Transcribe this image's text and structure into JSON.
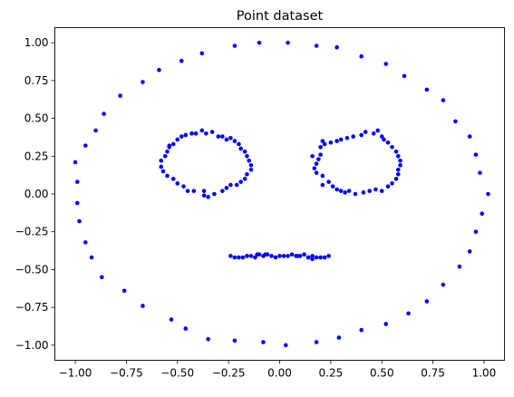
{
  "chart_data": {
    "type": "scatter",
    "title": "Point dataset",
    "xlabel": "",
    "ylabel": "",
    "xlim": [
      -1.1,
      1.1
    ],
    "ylim": [
      -1.1,
      1.1
    ],
    "xticks": [
      -1.0,
      -0.75,
      -0.5,
      -0.25,
      0.0,
      0.25,
      0.5,
      0.75,
      1.0
    ],
    "xtick_labels": [
      "−1.00",
      "−0.75",
      "−0.50",
      "−0.25",
      "0.00",
      "0.25",
      "0.50",
      "0.75",
      "1.00"
    ],
    "yticks": [
      1.0,
      0.75,
      0.5,
      0.25,
      0.0,
      -0.25,
      -0.5,
      -0.75,
      -1.0
    ],
    "ytick_labels": [
      "1.00",
      "0.75",
      "0.50",
      "0.25",
      "0.00",
      "−0.25",
      "−0.50",
      "−0.75",
      "−1.00"
    ],
    "grid": false,
    "legend": false,
    "marker_color": "#0000ff",
    "series": [
      {
        "points": [
          [
            -1.0,
            0.21
          ],
          [
            -0.99,
            0.08
          ],
          [
            -0.99,
            -0.06
          ],
          [
            -0.98,
            -0.18
          ],
          [
            -0.95,
            -0.32
          ],
          [
            -0.92,
            -0.42
          ],
          [
            -0.87,
            -0.55
          ],
          [
            -0.76,
            -0.64
          ],
          [
            -0.67,
            -0.74
          ],
          [
            -0.53,
            -0.83
          ],
          [
            -0.46,
            -0.89
          ],
          [
            -0.35,
            -0.96
          ],
          [
            -0.22,
            -0.97
          ],
          [
            -0.08,
            -0.98
          ],
          [
            0.03,
            -1.0
          ],
          [
            0.18,
            -0.98
          ],
          [
            0.29,
            -0.95
          ],
          [
            0.4,
            -0.9
          ],
          [
            0.52,
            -0.86
          ],
          [
            0.63,
            -0.79
          ],
          [
            0.72,
            -0.71
          ],
          [
            0.8,
            -0.6
          ],
          [
            0.88,
            -0.48
          ],
          [
            0.93,
            -0.38
          ],
          [
            0.96,
            -0.25
          ],
          [
            0.99,
            -0.13
          ],
          [
            1.02,
            0.0
          ],
          [
            0.98,
            0.14
          ],
          [
            0.96,
            0.26
          ],
          [
            0.93,
            0.38
          ],
          [
            0.86,
            0.48
          ],
          [
            0.8,
            0.62
          ],
          [
            0.72,
            0.69
          ],
          [
            0.61,
            0.78
          ],
          [
            0.52,
            0.86
          ],
          [
            0.4,
            0.91
          ],
          [
            0.28,
            0.97
          ],
          [
            0.18,
            0.98
          ],
          [
            0.04,
            1.0
          ],
          [
            -0.1,
            1.0
          ],
          [
            -0.22,
            0.98
          ],
          [
            -0.38,
            0.93
          ],
          [
            -0.48,
            0.88
          ],
          [
            -0.59,
            0.82
          ],
          [
            -0.67,
            0.74
          ],
          [
            -0.78,
            0.65
          ],
          [
            -0.86,
            0.53
          ],
          [
            -0.9,
            0.42
          ],
          [
            -0.95,
            0.32
          ],
          [
            -0.38,
            0.42
          ],
          [
            -0.36,
            0.4
          ],
          [
            -0.33,
            0.41
          ],
          [
            -0.3,
            0.38
          ],
          [
            -0.28,
            0.38
          ],
          [
            -0.26,
            0.36
          ],
          [
            -0.24,
            0.37
          ],
          [
            -0.22,
            0.35
          ],
          [
            -0.2,
            0.33
          ],
          [
            -0.19,
            0.3
          ],
          [
            -0.17,
            0.28
          ],
          [
            -0.16,
            0.25
          ],
          [
            -0.15,
            0.22
          ],
          [
            -0.14,
            0.19
          ],
          [
            -0.14,
            0.16
          ],
          [
            -0.16,
            0.13
          ],
          [
            -0.17,
            0.1
          ],
          [
            -0.19,
            0.08
          ],
          [
            -0.21,
            0.06
          ],
          [
            -0.24,
            0.06
          ],
          [
            -0.26,
            0.04
          ],
          [
            -0.28,
            0.02
          ],
          [
            -0.32,
            0.0
          ],
          [
            -0.35,
            -0.02
          ],
          [
            -0.37,
            0.02
          ],
          [
            -0.42,
            0.02
          ],
          [
            -0.45,
            0.02
          ],
          [
            -0.47,
            0.05
          ],
          [
            -0.5,
            0.07
          ],
          [
            -0.52,
            0.1
          ],
          [
            -0.55,
            0.12
          ],
          [
            -0.57,
            0.15
          ],
          [
            -0.58,
            0.18
          ],
          [
            -0.58,
            0.22
          ],
          [
            -0.56,
            0.25
          ],
          [
            -0.55,
            0.28
          ],
          [
            -0.54,
            0.31
          ],
          [
            -0.52,
            0.33
          ],
          [
            -0.5,
            0.36
          ],
          [
            -0.48,
            0.38
          ],
          [
            -0.46,
            0.39
          ],
          [
            -0.43,
            0.4
          ],
          [
            -0.37,
            -0.01
          ],
          [
            -0.54,
            0.32
          ],
          [
            -0.41,
            0.4
          ],
          [
            0.48,
            0.42
          ],
          [
            0.46,
            0.4
          ],
          [
            0.42,
            0.41
          ],
          [
            0.4,
            0.39
          ],
          [
            0.36,
            0.38
          ],
          [
            0.33,
            0.37
          ],
          [
            0.3,
            0.36
          ],
          [
            0.28,
            0.35
          ],
          [
            0.25,
            0.34
          ],
          [
            0.22,
            0.33
          ],
          [
            0.2,
            0.31
          ],
          [
            0.2,
            0.26
          ],
          [
            0.19,
            0.23
          ],
          [
            0.18,
            0.2
          ],
          [
            0.17,
            0.17
          ],
          [
            0.18,
            0.14
          ],
          [
            0.21,
            0.12
          ],
          [
            0.21,
            0.06
          ],
          [
            0.24,
            0.08
          ],
          [
            0.26,
            0.05
          ],
          [
            0.28,
            0.03
          ],
          [
            0.3,
            0.02
          ],
          [
            0.34,
            0.02
          ],
          [
            0.37,
            0.0
          ],
          [
            0.41,
            0.01
          ],
          [
            0.44,
            0.02
          ],
          [
            0.47,
            0.03
          ],
          [
            0.5,
            0.02
          ],
          [
            0.53,
            0.05
          ],
          [
            0.55,
            0.07
          ],
          [
            0.57,
            0.1
          ],
          [
            0.58,
            0.13
          ],
          [
            0.58,
            0.16
          ],
          [
            0.59,
            0.19
          ],
          [
            0.59,
            0.22
          ],
          [
            0.58,
            0.25
          ],
          [
            0.57,
            0.28
          ],
          [
            0.55,
            0.31
          ],
          [
            0.53,
            0.34
          ],
          [
            0.51,
            0.36
          ],
          [
            0.5,
            0.38
          ],
          [
            0.16,
            0.25
          ],
          [
            0.21,
            0.35
          ],
          [
            0.32,
            0.01
          ],
          [
            -0.24,
            -0.41
          ],
          [
            -0.22,
            -0.42
          ],
          [
            -0.2,
            -0.42
          ],
          [
            -0.18,
            -0.42
          ],
          [
            -0.16,
            -0.41
          ],
          [
            -0.14,
            -0.41
          ],
          [
            -0.12,
            -0.42
          ],
          [
            -0.1,
            -0.4
          ],
          [
            -0.08,
            -0.41
          ],
          [
            -0.06,
            -0.4
          ],
          [
            -0.04,
            -0.41
          ],
          [
            -0.02,
            -0.42
          ],
          [
            0.0,
            -0.41
          ],
          [
            0.02,
            -0.41
          ],
          [
            0.04,
            -0.41
          ],
          [
            0.06,
            -0.4
          ],
          [
            0.08,
            -0.41
          ],
          [
            0.1,
            -0.41
          ],
          [
            0.12,
            -0.4
          ],
          [
            0.14,
            -0.42
          ],
          [
            0.16,
            -0.41
          ],
          [
            0.18,
            -0.42
          ],
          [
            0.2,
            -0.42
          ],
          [
            0.22,
            -0.42
          ],
          [
            0.24,
            -0.41
          ],
          [
            -0.07,
            -0.4
          ],
          [
            0.09,
            -0.41
          ],
          [
            0.16,
            -0.43
          ],
          [
            0.14,
            -0.42
          ],
          [
            -0.11,
            -0.4
          ]
        ]
      }
    ]
  }
}
